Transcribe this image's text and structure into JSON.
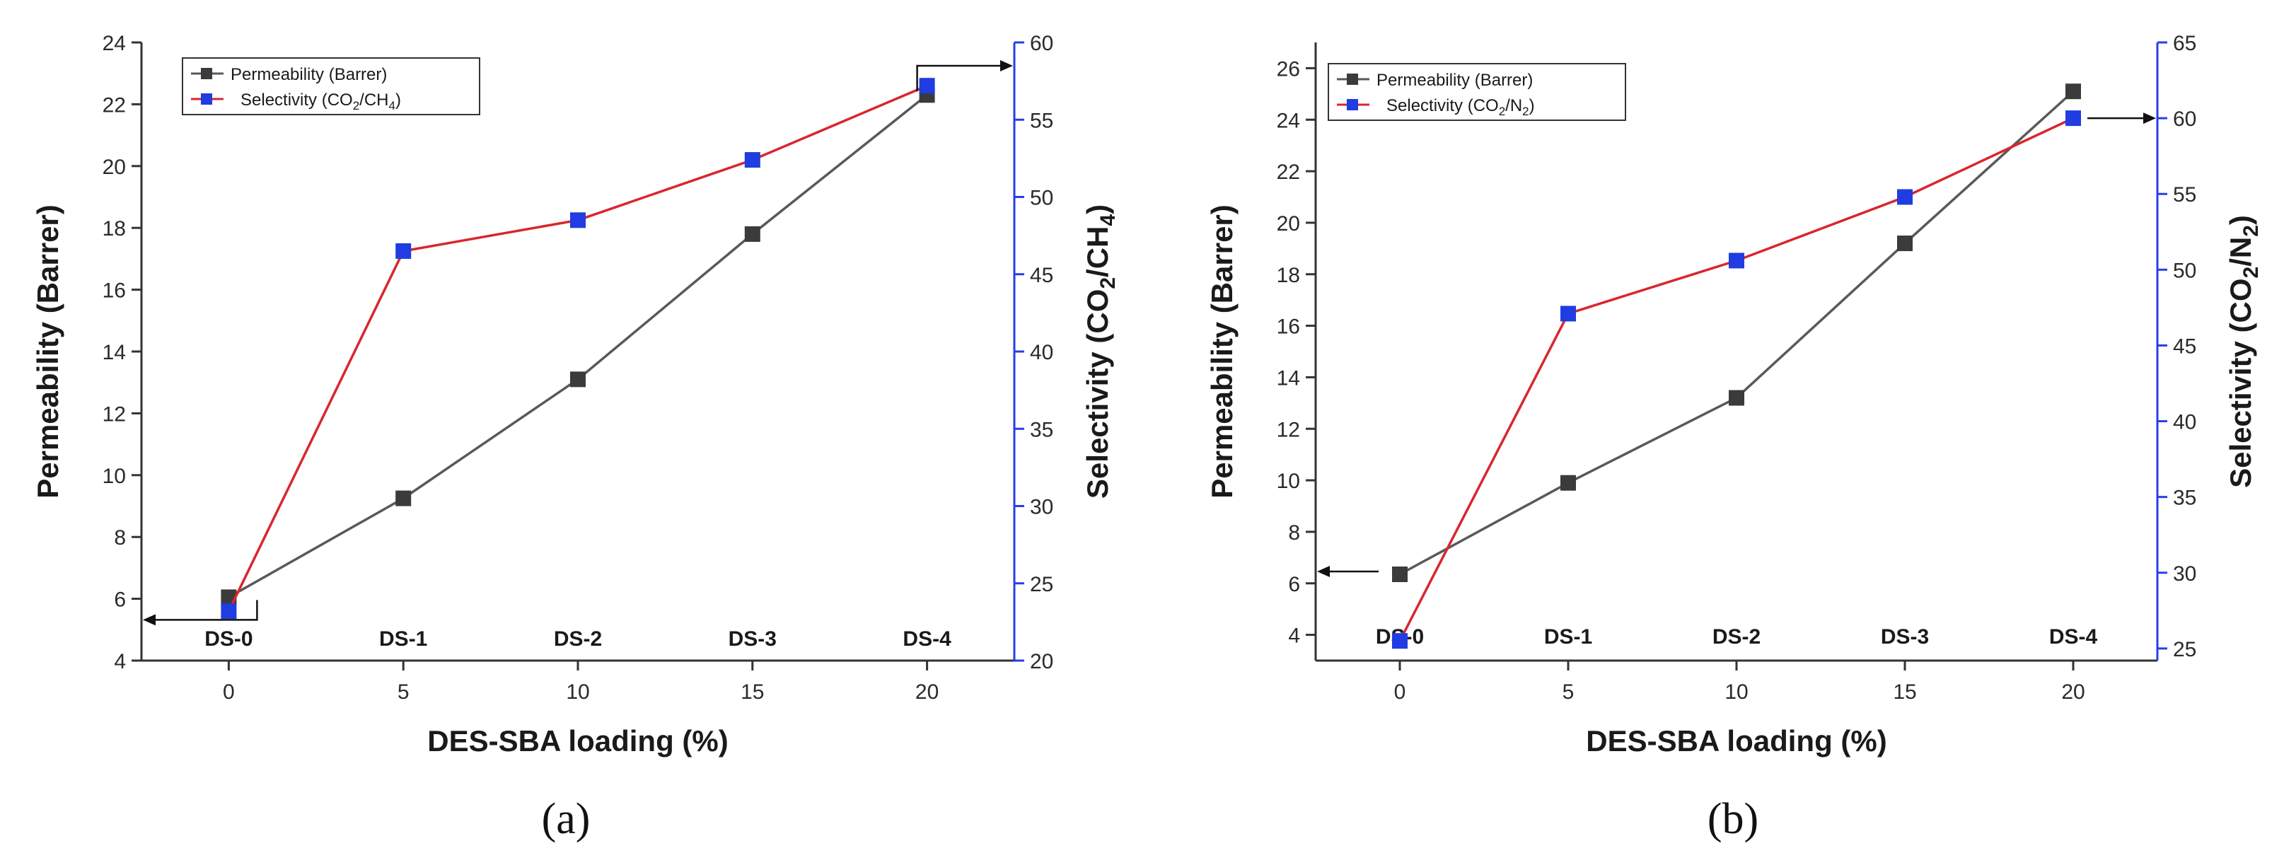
{
  "chart_data": [
    {
      "type": "line",
      "panel_label": "a",
      "xlabel": "DES-SBA loading (%)",
      "ylabel_left": "Permeability (Barrer)",
      "ylabel_right": "Selectivity (CO2/CH4)",
      "x": [
        0,
        5,
        10,
        15,
        20
      ],
      "x_ticks": [
        0,
        5,
        10,
        15,
        20
      ],
      "xlim": [
        -2.5,
        22.5
      ],
      "point_labels": [
        "DS-0",
        "DS-1",
        "DS-2",
        "DS-3",
        "DS-4"
      ],
      "left_axis": {
        "ylim": [
          4,
          24
        ],
        "ticks": [
          4,
          6,
          8,
          10,
          12,
          14,
          16,
          18,
          20,
          22,
          24
        ]
      },
      "right_axis": {
        "ylim": [
          20,
          60
        ],
        "ticks": [
          20,
          25,
          30,
          35,
          40,
          45,
          50,
          55,
          60
        ]
      },
      "series": [
        {
          "name": "Permeability (Barrer)",
          "axis": "left",
          "color": "#595959",
          "marker": "#3b3b3b",
          "values": [
            6.05,
            9.25,
            13.1,
            17.8,
            22.3
          ]
        },
        {
          "name": "Selectivity (CO2/CH4)",
          "axis": "right",
          "color": "#d9262e",
          "marker": "#1f3de0",
          "values": [
            23.2,
            46.5,
            48.5,
            52.4,
            57.2
          ]
        }
      ],
      "legend": {
        "permeability": "Permeability (Barrer)",
        "selectivity_prefix": "Selectivity (CO",
        "selectivity_sub1": "2",
        "selectivity_mid": "/CH",
        "selectivity_sub2": "4",
        "selectivity_suffix": ")"
      },
      "right_title": {
        "prefix": "Selectivity (CO",
        "sub1": "2",
        "mid": "/CH",
        "sub2": "4",
        "suffix": ")"
      }
    },
    {
      "type": "line",
      "panel_label": "b",
      "xlabel": "DES-SBA loading (%)",
      "ylabel_left": "Permeability (Barrer)",
      "ylabel_right": "Selectivity (CO2/N2)",
      "x": [
        0,
        5,
        10,
        15,
        20
      ],
      "x_ticks": [
        0,
        5,
        10,
        15,
        20
      ],
      "xlim": [
        -2.5,
        22.5
      ],
      "point_labels": [
        "DS-0",
        "DS-1",
        "DS-2",
        "DS-3",
        "DS-4"
      ],
      "left_axis": {
        "ylim": [
          3,
          27
        ],
        "ticks": [
          4,
          6,
          8,
          10,
          12,
          14,
          16,
          18,
          20,
          22,
          24,
          26
        ]
      },
      "right_axis": {
        "ylim": [
          24.2,
          65
        ],
        "ticks": [
          25,
          30,
          35,
          40,
          45,
          50,
          55,
          60,
          65
        ]
      },
      "series": [
        {
          "name": "Permeability (Barrer)",
          "axis": "left",
          "color": "#595959",
          "marker": "#3b3b3b",
          "values": [
            6.35,
            9.9,
            13.2,
            19.2,
            25.1
          ]
        },
        {
          "name": "Selectivity (CO2/N2)",
          "axis": "right",
          "color": "#d9262e",
          "marker": "#1f3de0",
          "values": [
            25.5,
            47.1,
            50.6,
            54.8,
            60.0
          ]
        }
      ],
      "legend": {
        "permeability": "Permeability (Barrer)",
        "selectivity_prefix": "Selectivity (CO",
        "selectivity_sub1": "2",
        "selectivity_mid": "/N",
        "selectivity_sub2": "2",
        "selectivity_suffix": ")"
      },
      "right_title": {
        "prefix": "Selectivity (CO",
        "sub1": "2",
        "mid": "/N",
        "sub2": "2",
        "suffix": ")"
      }
    }
  ],
  "captions": {
    "a": "(a)",
    "b": "(b)"
  },
  "colors": {
    "right_axis": "#2a3ee8",
    "left_axis": "#333333"
  }
}
